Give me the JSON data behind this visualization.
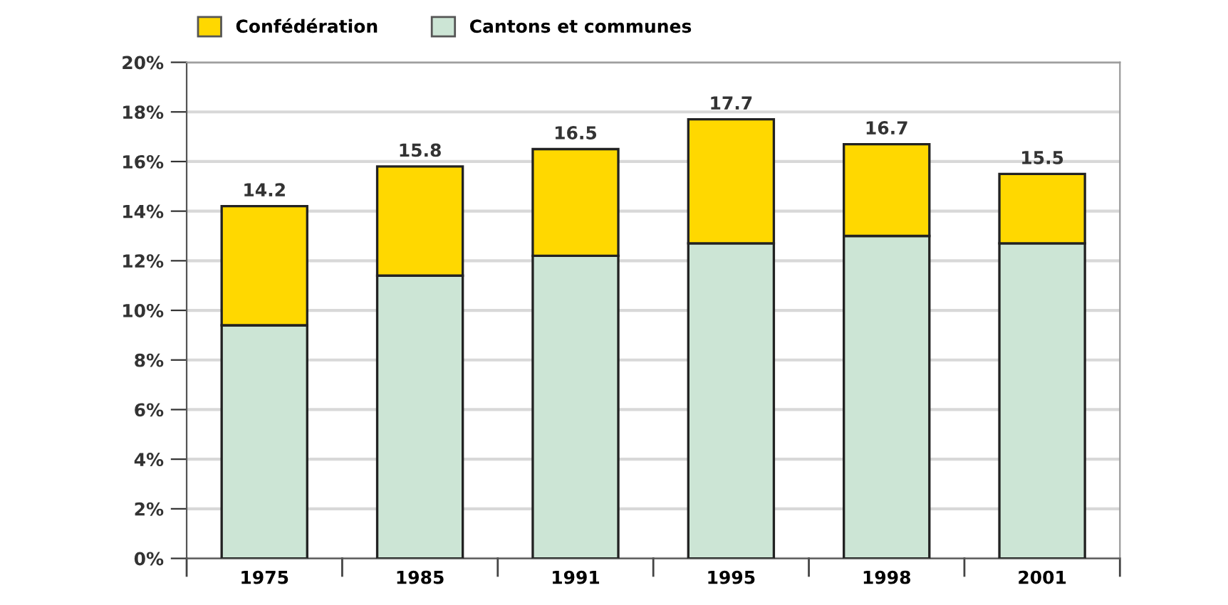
{
  "chart_data": {
    "type": "bar",
    "stacked": true,
    "categories": [
      "1975",
      "1985",
      "1991",
      "1995",
      "1998",
      "2001"
    ],
    "series": [
      {
        "name": "Cantons et communes",
        "color": "#cce5d5",
        "values": [
          9.4,
          11.4,
          12.2,
          12.7,
          13.0,
          12.7
        ]
      },
      {
        "name": "Confédération",
        "color": "#ffd800",
        "values": [
          4.8,
          4.4,
          4.3,
          5.0,
          3.7,
          2.8
        ]
      }
    ],
    "totals": [
      "14.2",
      "15.8",
      "16.5",
      "17.7",
      "16.7",
      "15.5"
    ],
    "ylim": [
      0,
      20
    ],
    "yticks": [
      {
        "value": 0,
        "label": "0%"
      },
      {
        "value": 2,
        "label": "2%"
      },
      {
        "value": 4,
        "label": "4%"
      },
      {
        "value": 6,
        "label": "6%"
      },
      {
        "value": 8,
        "label": "8%"
      },
      {
        "value": 10,
        "label": "10%"
      },
      {
        "value": 12,
        "label": "12%"
      },
      {
        "value": 14,
        "label": "14%"
      },
      {
        "value": 16,
        "label": "16%"
      },
      {
        "value": 18,
        "label": "18%"
      },
      {
        "value": 20,
        "label": "20%"
      }
    ],
    "grid": "y",
    "legend": "top left"
  }
}
